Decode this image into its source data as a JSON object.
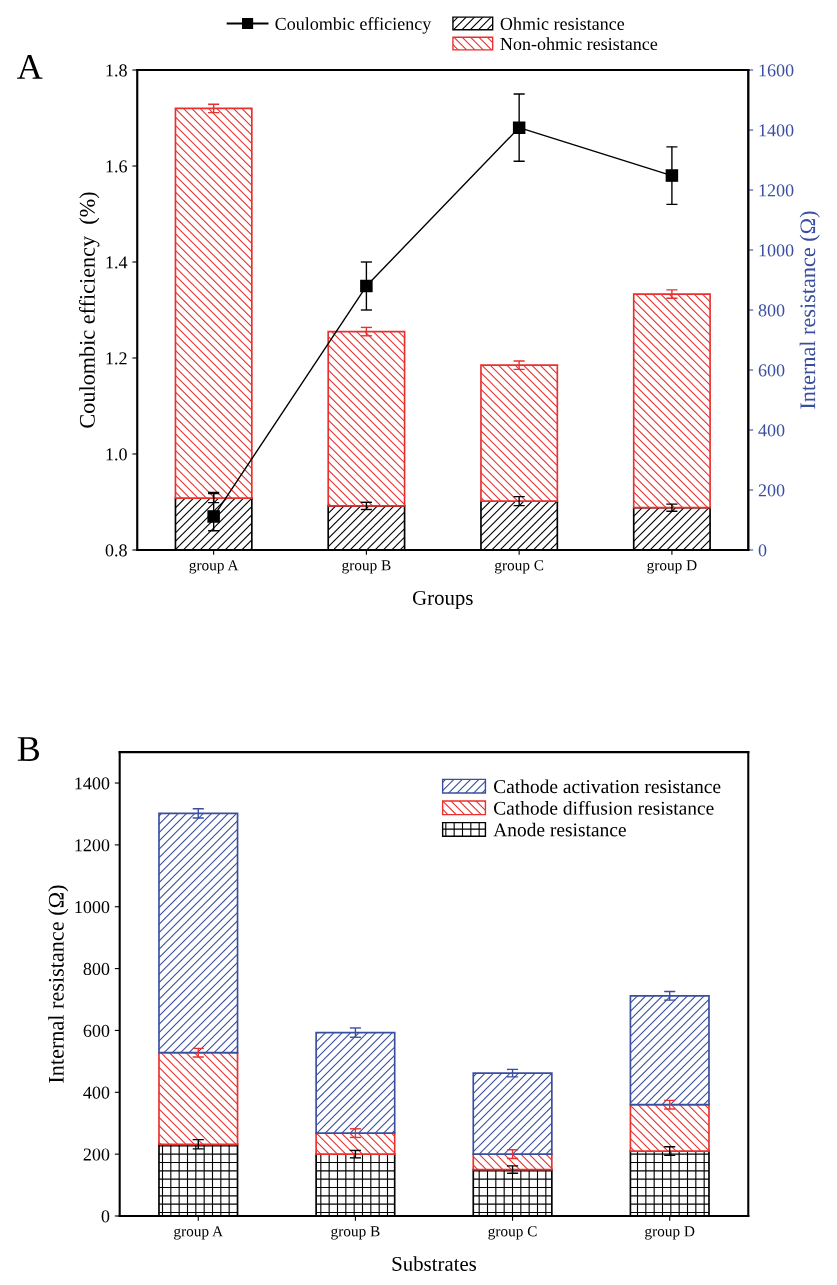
{
  "chart_data": [
    {
      "type": "bar",
      "stacked": true,
      "xlabel": "Groups",
      "ylabel": "Coulombic efficiency  (%)",
      "y2label": "Internal resistance (Ω)",
      "annotations": [
        "A"
      ],
      "categories": [
        "group A",
        "group B",
        "group C",
        "group D"
      ],
      "ylim": [
        0.8,
        1.8
      ],
      "yticks": [
        0.8,
        {
          "value": 1.0,
          "label": "1.0"
        },
        1.2,
        1.4,
        1.6,
        1.8
      ],
      "y2lim": [
        0,
        1600
      ],
      "y2ticks": [
        0,
        200,
        400,
        600,
        800,
        1000,
        1200,
        1400,
        1600
      ],
      "legend": "top",
      "marker": "square",
      "line_style": "solid",
      "grid": false,
      "series": [
        {
          "name": "Coulombic efficiency",
          "type": "line",
          "axis": "y",
          "color": "#000000",
          "values": [
            0.87,
            1.35,
            1.68,
            1.58
          ],
          "errors": [
            [
              0.84,
              0.92
            ],
            [
              1.3,
              1.4
            ],
            [
              1.61,
              1.75
            ],
            [
              1.52,
              1.64
            ]
          ]
        },
        {
          "name": "Ohmic resistance",
          "axis": "y2",
          "color": "#000000",
          "values": [
            173,
            147,
            163,
            141
          ],
          "errors": [
            15,
            12,
            15,
            12
          ]
        },
        {
          "name": "Non-ohmic resistance",
          "axis": "y2",
          "color": "#e8312f",
          "values": [
            1299,
            581,
            453,
            712
          ],
          "errors": [
            14,
            14,
            14,
            14
          ]
        }
      ]
    },
    {
      "type": "bar",
      "stacked": true,
      "xlabel": "Substrates",
      "ylabel": "Internal resistance (Ω)",
      "annotations": [
        "B"
      ],
      "categories": [
        "group A",
        "group B",
        "group C",
        "group D"
      ],
      "ylim": [
        0,
        1500
      ],
      "yticks": [
        0,
        200,
        400,
        600,
        800,
        1000,
        1200,
        1400
      ],
      "legend": "top right",
      "grid": false,
      "series": [
        {
          "name": "Anode resistance",
          "color": "#000000",
          "values": [
            232,
            200,
            150,
            210
          ],
          "errors": [
            15,
            12,
            12,
            14
          ]
        },
        {
          "name": "Cathode diffusion resistance",
          "color": "#e8312f",
          "values": [
            296,
            68,
            50,
            150
          ],
          "errors": [
            14,
            14,
            14,
            14
          ]
        },
        {
          "name": "Cathode activation resistance",
          "color": "#3a4ea0",
          "values": [
            774,
            325,
            262,
            352
          ],
          "errors": [
            15,
            15,
            12,
            14
          ]
        }
      ]
    }
  ]
}
